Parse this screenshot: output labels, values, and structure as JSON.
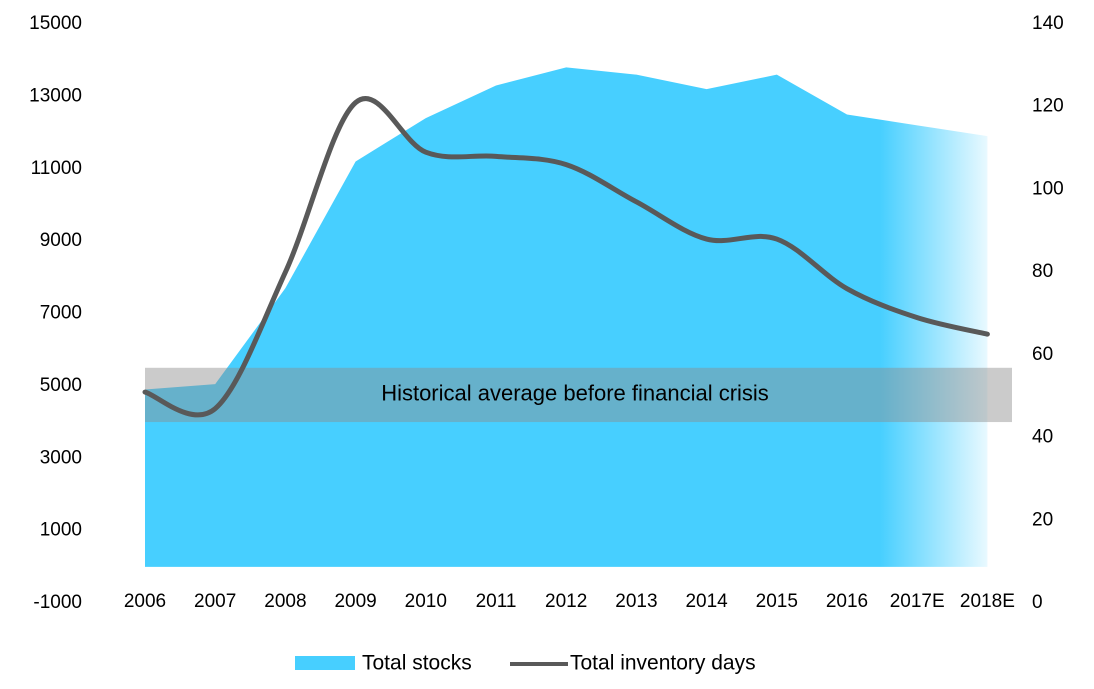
{
  "chart_data": {
    "type": "area-line",
    "categories": [
      "2006",
      "2007",
      "2008",
      "2009",
      "2010",
      "2011",
      "2012",
      "2013",
      "2014",
      "2015",
      "2016",
      "2017E",
      "2018E"
    ],
    "series": [
      {
        "name": "Total stocks",
        "color": "#47cfff",
        "type": "area",
        "values": [
          4900,
          5050,
          7700,
          11200,
          12400,
          13300,
          13800,
          13600,
          13200,
          13600,
          12500,
          12200,
          11900
        ]
      },
      {
        "name": "Total inventory days",
        "color": "#595959",
        "type": "line",
        "axis": "y2",
        "values": [
          51,
          47,
          80,
          121,
          109,
          108,
          106,
          97,
          88,
          88,
          76,
          69,
          65
        ]
      }
    ],
    "ylim": [
      -1000,
      15000
    ],
    "yticks": [
      -1000,
      1000,
      3000,
      5000,
      7000,
      9000,
      11000,
      13000,
      15000
    ],
    "y2lim": [
      0,
      140
    ],
    "y2ticks": [
      0,
      20,
      40,
      60,
      80,
      100,
      120,
      140
    ],
    "annotation": {
      "text": "Historical average before financial crisis",
      "band": [
        4000,
        5500
      ]
    },
    "legend": "bottom"
  }
}
